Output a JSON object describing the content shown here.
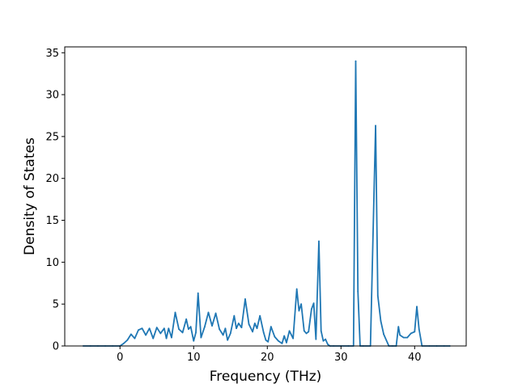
{
  "chart_data": {
    "type": "line",
    "title": "",
    "xlabel": "Frequency (THz)",
    "ylabel": "Density of States",
    "xlim": [
      -7.5,
      47
    ],
    "ylim": [
      0,
      35.7
    ],
    "xticks": [
      0,
      10,
      20,
      30,
      40
    ],
    "yticks": [
      0,
      5,
      10,
      15,
      20,
      25,
      30,
      35
    ],
    "grid": false,
    "legend": "none",
    "series": [
      {
        "color": "#1f77b4",
        "x": [
          -5,
          -4,
          -3,
          -2,
          -1,
          0,
          0.5,
          1,
          1.5,
          2,
          2.5,
          3,
          3.5,
          4,
          4.5,
          5,
          5.5,
          6,
          6.3,
          6.6,
          7,
          7.5,
          8,
          8.5,
          9,
          9.3,
          9.6,
          10,
          10.3,
          10.6,
          11,
          11.5,
          12,
          12.5,
          13,
          13.5,
          14,
          14.3,
          14.6,
          15,
          15.5,
          15.8,
          16.1,
          16.5,
          17,
          17.5,
          18,
          18.3,
          18.6,
          19,
          19.5,
          19.8,
          20.1,
          20.5,
          21,
          21.5,
          22,
          22.3,
          22.6,
          23,
          23.5,
          24,
          24.3,
          24.6,
          25,
          25.3,
          25.6,
          26,
          26.3,
          26.6,
          27,
          27.3,
          27.6,
          27.9,
          28.2,
          28.5,
          29,
          30,
          31,
          31.7,
          32,
          32.3,
          32.6,
          33,
          34,
          34.7,
          35,
          35.4,
          35.8,
          36.5,
          37,
          37.5,
          37.8,
          38,
          38.5,
          39,
          39.5,
          40,
          40.3,
          40.6,
          41,
          42,
          43,
          44,
          44.8
        ],
        "y": [
          0,
          0,
          0,
          0,
          0,
          0,
          0.3,
          0.7,
          1.4,
          0.9,
          1.9,
          2.1,
          1.3,
          2.1,
          0.9,
          2.2,
          1.5,
          2.1,
          0.9,
          2.1,
          1.0,
          4.0,
          2.0,
          1.6,
          3.2,
          2.0,
          2.3,
          0.6,
          1.6,
          6.3,
          1.0,
          2.3,
          4.0,
          2.4,
          3.9,
          2.0,
          1.3,
          2.1,
          0.7,
          1.5,
          3.6,
          2.1,
          2.7,
          2.2,
          5.6,
          2.6,
          1.7,
          2.7,
          2.1,
          3.6,
          1.6,
          0.7,
          0.5,
          2.3,
          1.1,
          0.6,
          0.3,
          1.2,
          0.4,
          1.8,
          0.9,
          6.8,
          4.2,
          5.0,
          1.8,
          1.5,
          1.7,
          4.4,
          5.1,
          0.8,
          12.5,
          1.8,
          0.6,
          0.8,
          0.2,
          0,
          0,
          0,
          0,
          0,
          34.0,
          6.5,
          0,
          0,
          0,
          26.3,
          6.0,
          3.0,
          1.4,
          0,
          0,
          0,
          2.3,
          1.3,
          1.0,
          1.0,
          1.5,
          1.7,
          4.7,
          2.0,
          0,
          0,
          0,
          0,
          0
        ]
      }
    ]
  }
}
